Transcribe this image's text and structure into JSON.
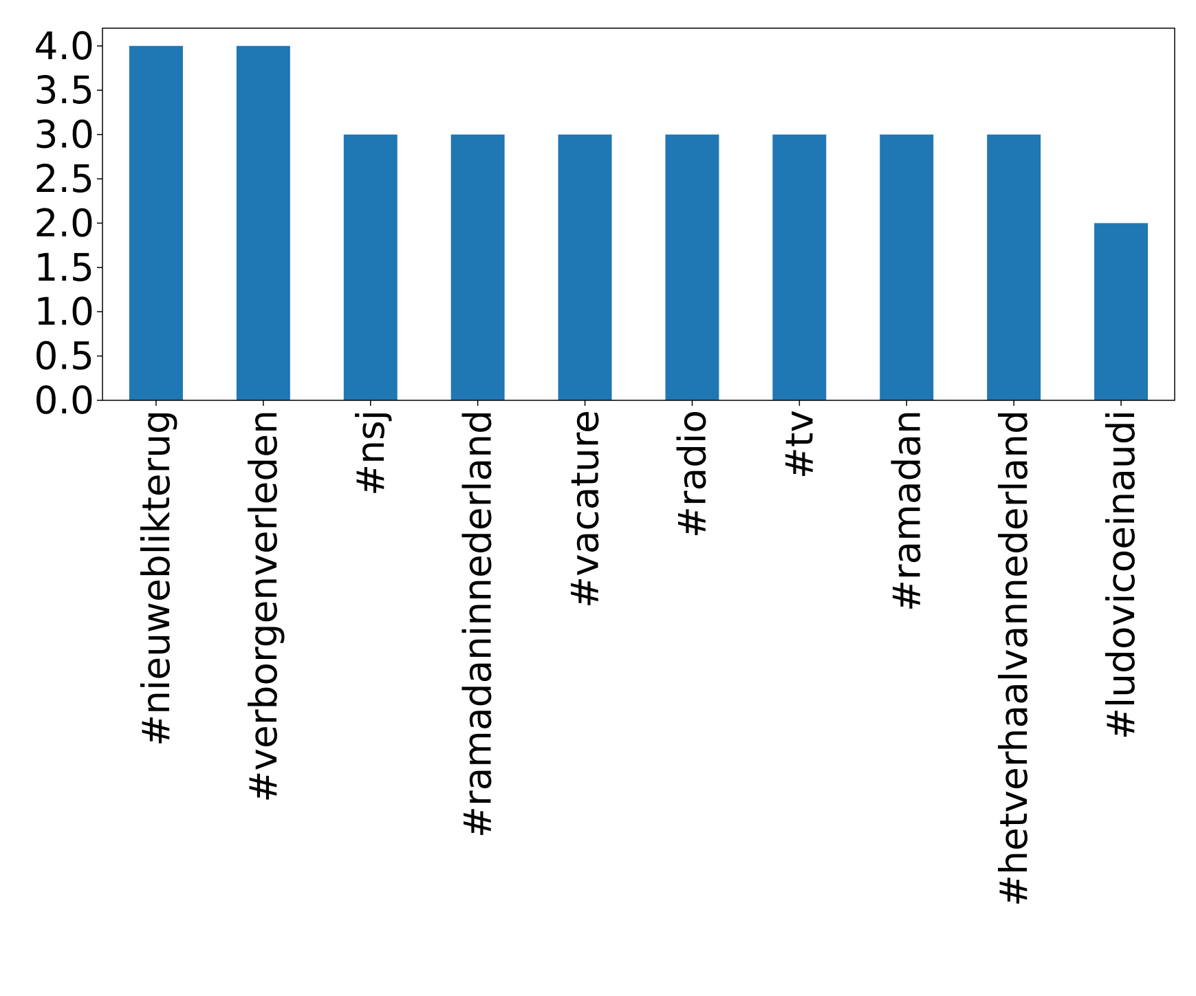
{
  "chart_data": {
    "type": "bar",
    "categories": [
      "#nieuweblikterug",
      "#verborgenverleden",
      "#nsj",
      "#ramadaninnederland",
      "#vacature",
      "#radio",
      "#tv",
      "#ramadan",
      "#hetverhaalvannederland",
      "#ludovicoeinaudi"
    ],
    "values": [
      4,
      4,
      3,
      3,
      3,
      3,
      3,
      3,
      3,
      2
    ],
    "color": "#1f77b4",
    "ylim": [
      0,
      4.2
    ],
    "yticks": [
      {
        "value": 0,
        "label": "0.0"
      },
      {
        "value": 0.5,
        "label": "0.5"
      },
      {
        "value": 1,
        "label": "1.0"
      },
      {
        "value": 1.5,
        "label": "1.5"
      },
      {
        "value": 2,
        "label": "2.0"
      },
      {
        "value": 2.5,
        "label": "2.5"
      },
      {
        "value": 3,
        "label": "3.0"
      },
      {
        "value": 3.5,
        "label": "3.5"
      },
      {
        "value": 4,
        "label": "4.0"
      }
    ]
  }
}
